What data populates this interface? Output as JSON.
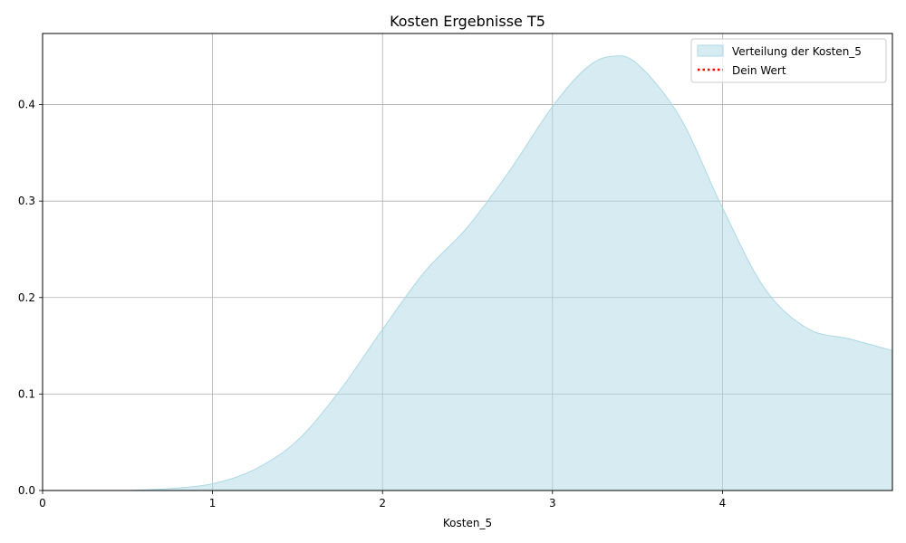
{
  "chart_data": {
    "type": "area",
    "title": "Kosten Ergebnisse T5",
    "xlabel": "Kosten_5",
    "ylabel": "",
    "xlim": [
      0,
      5.0
    ],
    "ylim": [
      0,
      0.4737
    ],
    "x_ticks": [
      "0",
      "1",
      "2",
      "3",
      "4"
    ],
    "y_ticks": [
      "0.0",
      "0.1",
      "0.2",
      "0.3",
      "0.4"
    ],
    "grid": true,
    "legend_position": "top-right",
    "series": [
      {
        "name": "Verteilung der Kosten_5",
        "kind": "filled-density",
        "color": "#add8e6",
        "x": [
          0.5,
          0.75,
          1.0,
          1.25,
          1.5,
          1.75,
          2.0,
          2.25,
          2.5,
          2.75,
          3.0,
          3.2,
          3.35,
          3.5,
          3.75,
          4.0,
          4.25,
          4.5,
          4.75,
          5.0
        ],
        "y": [
          0.0,
          0.002,
          0.007,
          0.022,
          0.052,
          0.104,
          0.167,
          0.227,
          0.273,
          0.332,
          0.398,
          0.438,
          0.45,
          0.442,
          0.387,
          0.293,
          0.209,
          0.168,
          0.157,
          0.145
        ]
      },
      {
        "name": "Dein Wert",
        "kind": "vertical-dotted-line",
        "color": "#ff0000",
        "x": []
      }
    ]
  }
}
